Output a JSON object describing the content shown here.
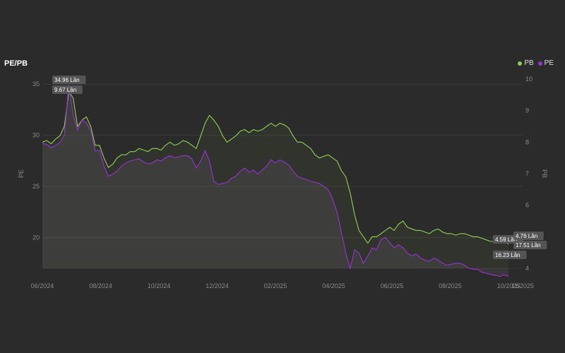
{
  "colors": {
    "pb": "#8fd14f",
    "pe": "#9b30d9",
    "background": "#2b2b2b",
    "grid": "#3a3a3a"
  },
  "chart_data": {
    "type": "line",
    "title": "PE/PB",
    "legend_position": "top-right",
    "grid": true,
    "x_tick_labels": [
      "06/2024",
      "08/2024",
      "10/2024",
      "12/2024",
      "02/2025",
      "04/2025",
      "06/2025",
      "08/2025",
      "10/2025",
      "11/2025"
    ],
    "y_left": {
      "label": "PE",
      "range": [
        17,
        35.5
      ],
      "ticks": [
        "20",
        "25",
        "30",
        "35"
      ]
    },
    "y_right": {
      "label": "PB",
      "range": [
        4,
        10
      ],
      "ticks": [
        "4",
        "5",
        "6",
        "7",
        "8",
        "9",
        "10"
      ]
    },
    "series": [
      {
        "name": "PB",
        "axis": "right",
        "color": "#8fd14f",
        "values": [
          8.0,
          8.05,
          7.95,
          8.1,
          8.2,
          8.5,
          9.6,
          9.4,
          8.5,
          8.7,
          8.8,
          8.5,
          7.9,
          7.9,
          7.5,
          7.2,
          7.3,
          7.5,
          7.6,
          7.6,
          7.7,
          7.7,
          7.8,
          7.75,
          7.7,
          7.8,
          7.8,
          7.75,
          7.9,
          8.0,
          7.9,
          7.95,
          8.05,
          8.0,
          7.9,
          7.8,
          8.2,
          8.6,
          8.85,
          8.7,
          8.5,
          8.2,
          8.0,
          8.1,
          8.2,
          8.35,
          8.4,
          8.3,
          8.4,
          8.35,
          8.4,
          8.5,
          8.6,
          8.5,
          8.6,
          8.55,
          8.45,
          8.2,
          8.0,
          8.0,
          7.9,
          7.8,
          7.6,
          7.5,
          7.55,
          7.6,
          7.5,
          7.4,
          7.1,
          6.9,
          6.4,
          5.7,
          5.2,
          5.0,
          4.8,
          5.0,
          5.0,
          5.1,
          5.2,
          5.3,
          5.2,
          5.4,
          5.5,
          5.3,
          5.25,
          5.2,
          5.2,
          5.15,
          5.1,
          5.2,
          5.25,
          5.15,
          5.1,
          5.1,
          5.05,
          5.1,
          5.1,
          5.05,
          5.0,
          5.0,
          4.95,
          4.9,
          4.85,
          4.85,
          4.85,
          4.95,
          4.76
        ]
      },
      {
        "name": "PE",
        "axis": "left",
        "color": "#9b30d9",
        "values": [
          29.2,
          29.1,
          28.8,
          29.0,
          29.3,
          30.0,
          34.96,
          32.0,
          30.5,
          31.5,
          31.2,
          30.5,
          28.5,
          28.5,
          27.0,
          26.0,
          26.2,
          26.5,
          27.0,
          27.3,
          27.5,
          27.6,
          27.7,
          27.4,
          27.2,
          27.3,
          27.6,
          27.5,
          27.8,
          28.0,
          27.8,
          27.9,
          28.0,
          28.0,
          27.7,
          26.8,
          27.5,
          28.5,
          27.5,
          25.5,
          25.2,
          25.3,
          25.4,
          25.8,
          26.0,
          26.5,
          26.8,
          26.4,
          26.6,
          26.2,
          26.6,
          27.0,
          27.6,
          27.3,
          27.6,
          27.4,
          27.1,
          26.5,
          26.0,
          25.8,
          25.7,
          25.5,
          25.4,
          25.3,
          25.0,
          24.7,
          23.8,
          22.5,
          20.5,
          18.5,
          17.0,
          18.8,
          18.5,
          17.5,
          18.2,
          19.0,
          18.8,
          19.8,
          20.0,
          19.5,
          19.0,
          19.3,
          19.0,
          18.5,
          18.2,
          18.4,
          18.0,
          17.8,
          17.7,
          18.0,
          17.8,
          17.5,
          17.3,
          17.4,
          17.5,
          17.5,
          17.3,
          17.0,
          16.9,
          16.9,
          16.6,
          16.5,
          16.4,
          16.3,
          16.2,
          16.35,
          16.23
        ]
      }
    ],
    "annotations": [
      {
        "series": "PE",
        "at": "start",
        "label": "34.96 Lần"
      },
      {
        "series": "PB",
        "at": "start",
        "label": "9.67 Lần"
      },
      {
        "series": "PB",
        "at": "end",
        "label": "4.59 Lần"
      },
      {
        "series": "PB",
        "at": "end",
        "label": "4.76 Lần"
      },
      {
        "series": "PE",
        "at": "end",
        "label": "17.51 Lần"
      },
      {
        "series": "PE",
        "at": "end",
        "label": "16.23 Lần"
      }
    ]
  }
}
